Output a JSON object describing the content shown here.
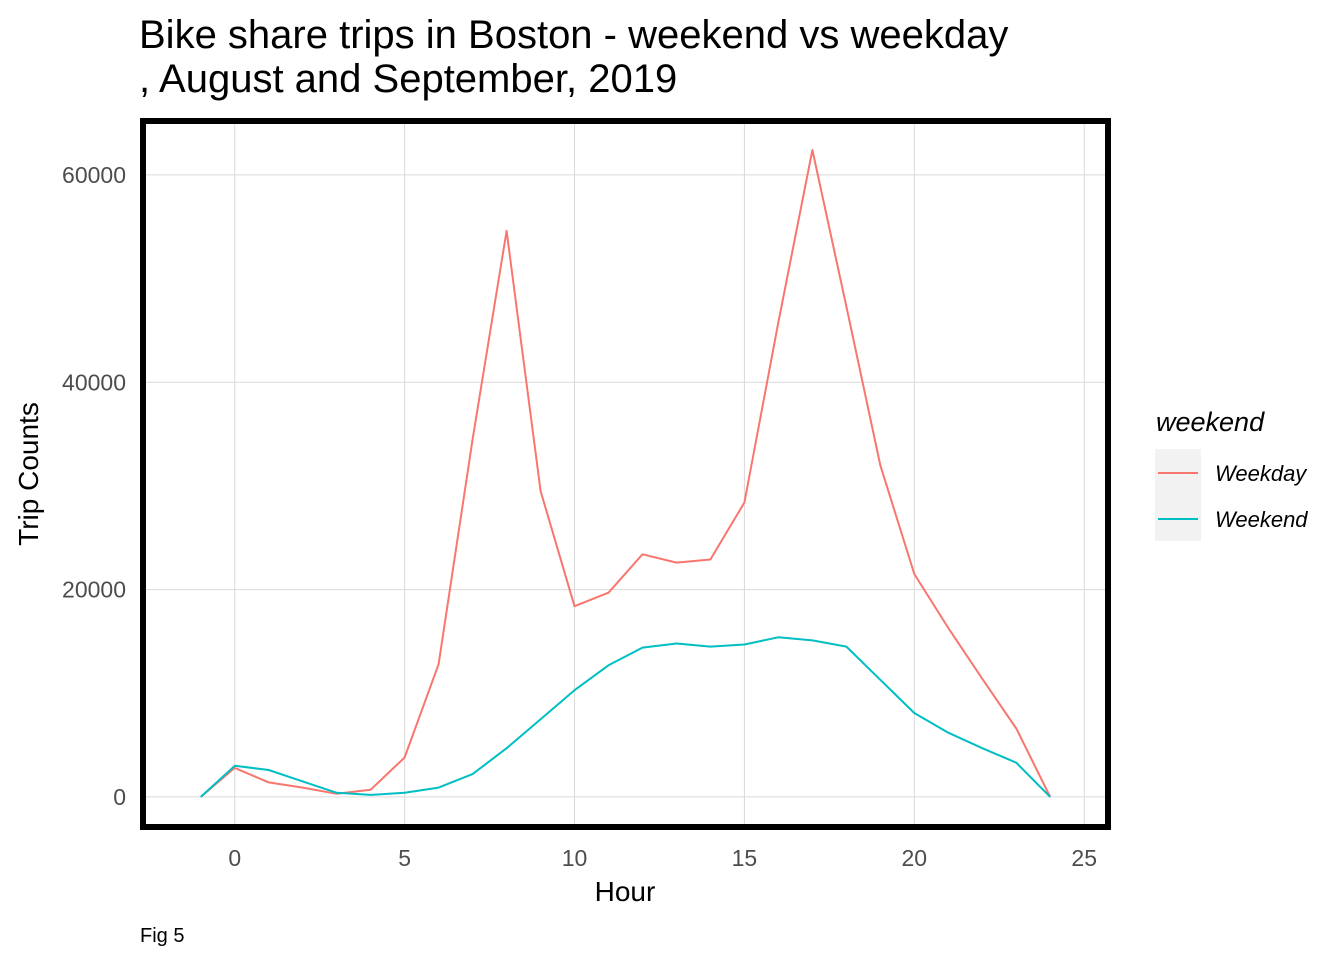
{
  "chart_data": {
    "type": "line",
    "title": "Bike share trips in Boston - weekend vs weekday",
    "subtitle": ", August and September, 2019",
    "xlabel": "Hour",
    "ylabel": "Trip Counts",
    "caption": "Fig 5",
    "xlim": [
      -2.7,
      25.7
    ],
    "ylim": [
      -2900,
      65200
    ],
    "x_ticks": [
      0,
      5,
      10,
      15,
      20,
      25
    ],
    "x_tick_labels": [
      "0",
      "5",
      "10",
      "15",
      "20",
      "25"
    ],
    "y_ticks": [
      0,
      20000,
      40000,
      60000
    ],
    "y_tick_labels": [
      "0",
      "20000",
      "40000",
      "60000"
    ],
    "grid": true,
    "legend": {
      "title": "weekend",
      "position": "right"
    },
    "series": [
      {
        "name": "Weekday",
        "color": "#f8766d",
        "x": [
          -1,
          0,
          1,
          2,
          3,
          4,
          5,
          6,
          7,
          8,
          9,
          10,
          11,
          12,
          13,
          14,
          15,
          16,
          17,
          18,
          19,
          20,
          21,
          22,
          23,
          24
        ],
        "y": [
          0,
          2800,
          1400,
          900,
          300,
          700,
          3800,
          12800,
          34500,
          54600,
          29500,
          18400,
          19700,
          23400,
          22600,
          22900,
          28400,
          45800,
          62400,
          47300,
          32000,
          21500,
          16300,
          11400,
          6600,
          0
        ]
      },
      {
        "name": "Weekend",
        "color": "#00bfc4",
        "x": [
          -1,
          0,
          1,
          2,
          3,
          4,
          5,
          6,
          7,
          8,
          9,
          10,
          11,
          12,
          13,
          14,
          15,
          16,
          17,
          18,
          19,
          20,
          21,
          22,
          23,
          24
        ],
        "y": [
          0,
          3000,
          2600,
          1500,
          400,
          200,
          400,
          900,
          2200,
          4700,
          7500,
          10300,
          12700,
          14400,
          14800,
          14500,
          14700,
          15400,
          15100,
          14500,
          11300,
          8100,
          6200,
          4700,
          3300,
          0
        ]
      }
    ]
  }
}
